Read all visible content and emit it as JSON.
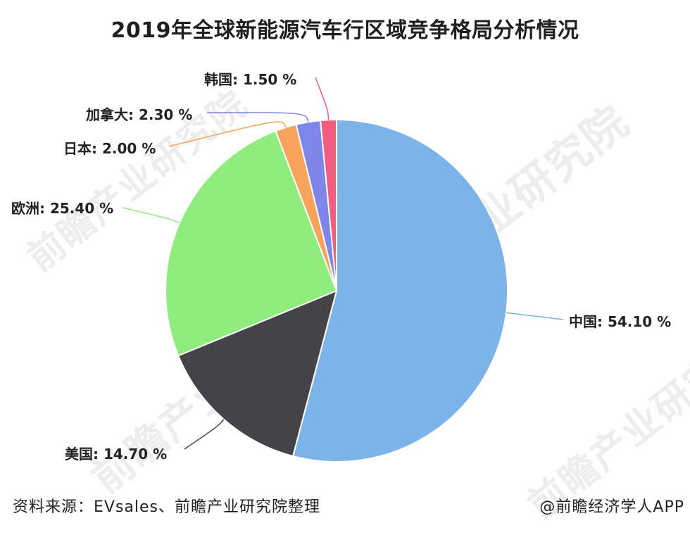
{
  "title": "2019年全球新能源汽车行区域竞争格局分析情况",
  "watermark_text": "前瞻产业研究院",
  "footer": {
    "source": "资料来源：EVsales、前瞻产业研究院整理",
    "brand": "@前瞻经济学人APP"
  },
  "chart_data": {
    "type": "pie",
    "title": "2019年全球新能源汽车行区域竞争格局分析情况",
    "slices": [
      {
        "name": "中国",
        "value": 54.1,
        "label": "中国: 54.10 %",
        "color": "#7cb3e8",
        "leader": "#7cb3e8"
      },
      {
        "name": "美国",
        "value": 14.7,
        "label": "美国: 14.70 %",
        "color": "#434348",
        "leader": "#434348"
      },
      {
        "name": "欧洲",
        "value": 25.4,
        "label": "欧洲: 25.40 %",
        "color": "#90ed7d",
        "leader": "#90ed7d"
      },
      {
        "name": "日本",
        "value": 2.0,
        "label": "日本: 2.00 %",
        "color": "#f7a35c",
        "leader": "#f7a35c"
      },
      {
        "name": "加拿大",
        "value": 2.3,
        "label": "加拿大: 2.30 %",
        "color": "#8085e9",
        "leader": "#8085e9"
      },
      {
        "name": "韩国",
        "value": 1.5,
        "label": "韩国: 1.50 %",
        "color": "#f15c80",
        "leader": "#f15c80"
      }
    ]
  }
}
